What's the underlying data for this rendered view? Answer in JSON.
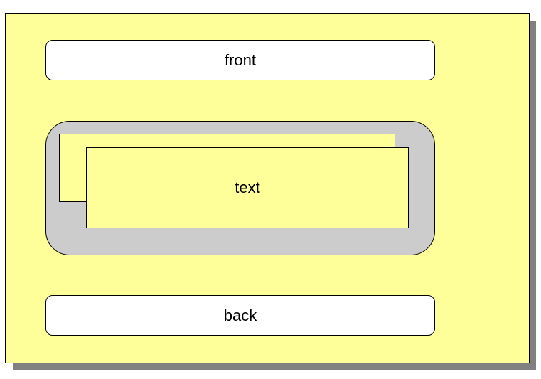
{
  "diagram": {
    "front_label": "front",
    "text_label": "text",
    "back_label": "back"
  },
  "colors": {
    "panel": "#ffff99",
    "shadow": "#808080",
    "container": "#cccccc",
    "bar": "#ffffff",
    "border": "#000000"
  }
}
